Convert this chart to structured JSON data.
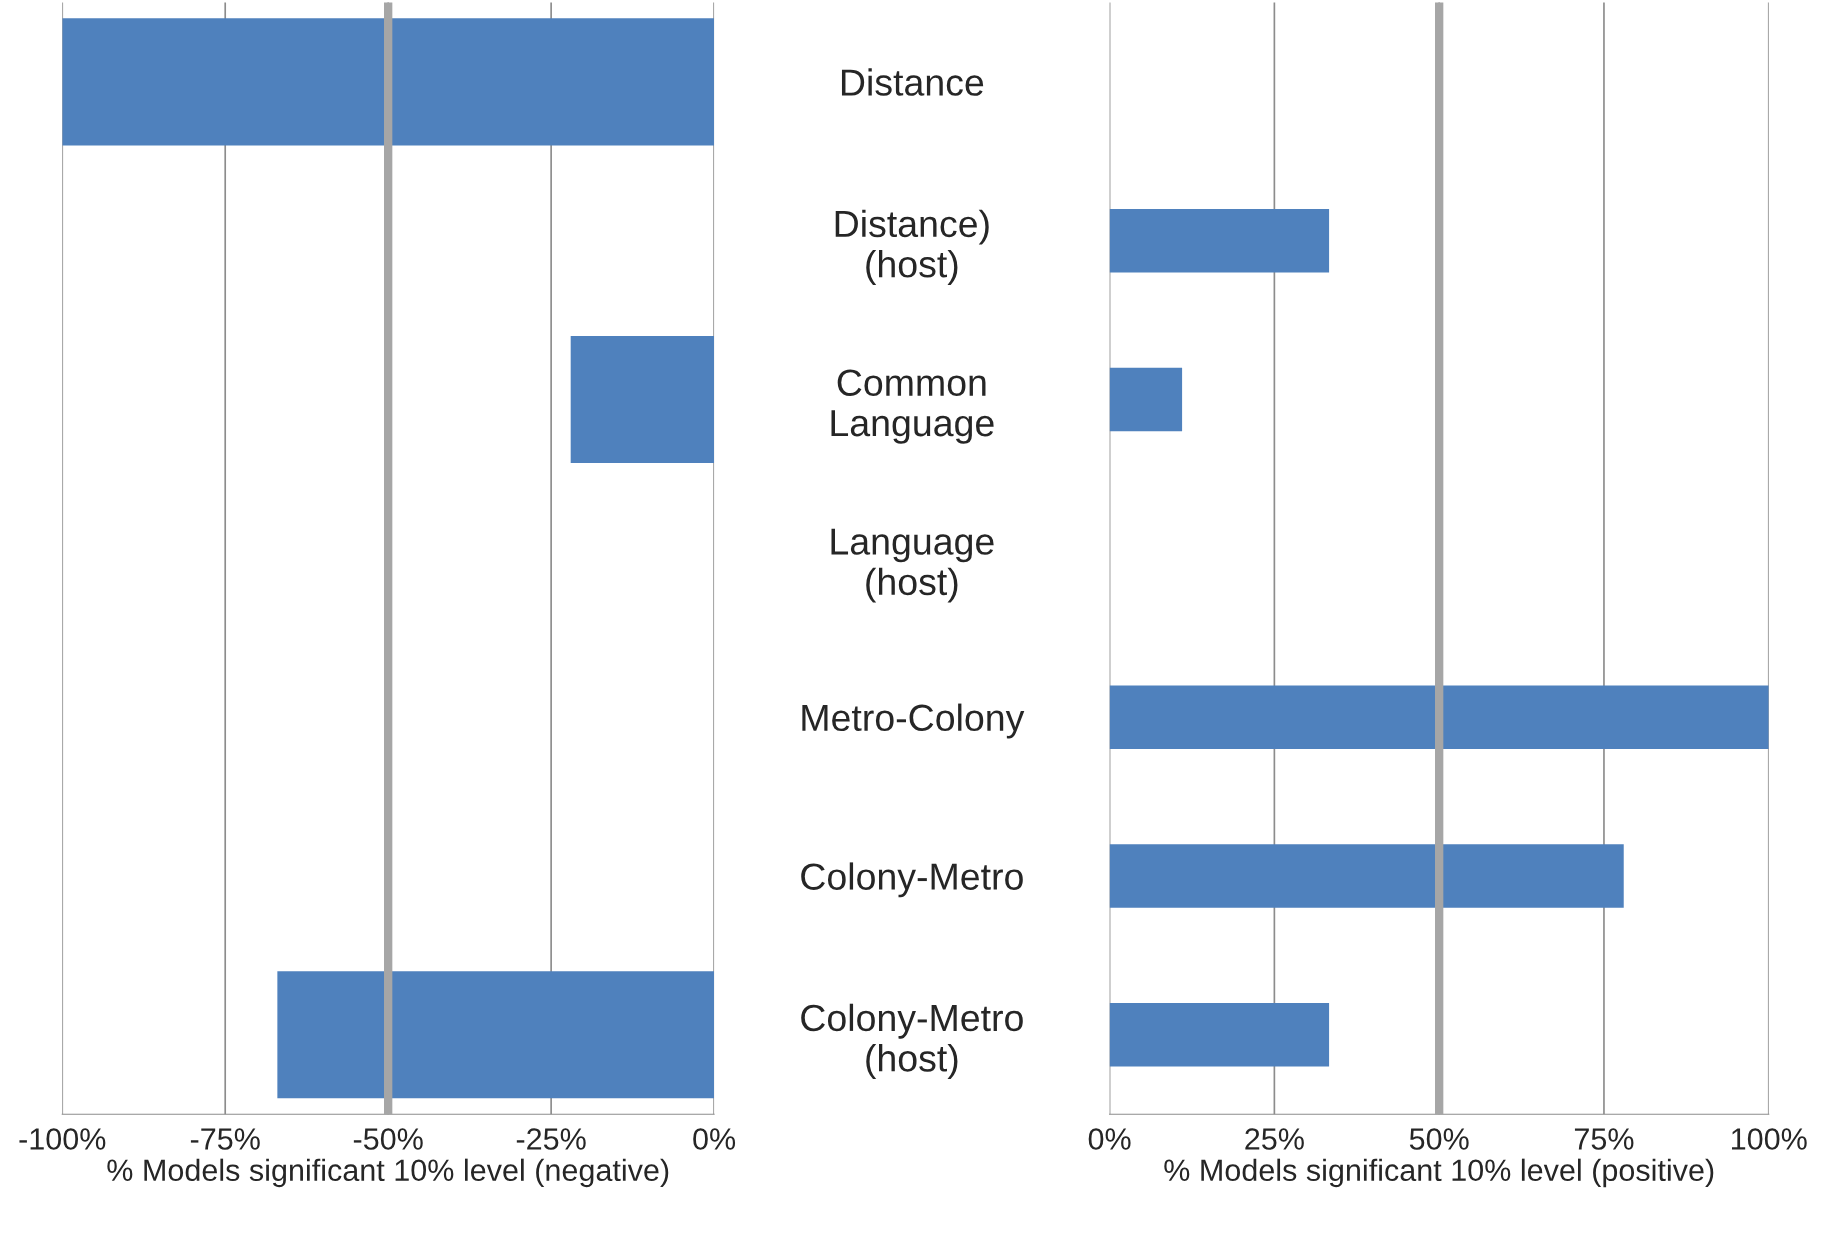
{
  "chart_data": [
    {
      "type": "bar",
      "orientation": "horizontal",
      "categories": [
        null,
        null,
        null,
        null,
        null,
        null,
        null
      ],
      "series": [
        {
          "color": "#4f81bd",
          "values": [
            -100,
            null,
            -22,
            null,
            null,
            null,
            -67
          ]
        }
      ],
      "xlabel": "% Models significant 10% level (negative)",
      "xlim": [
        -100,
        0
      ],
      "xticks": [
        {
          "value": -100,
          "label": "-100%"
        },
        {
          "value": -75,
          "label": "-75%"
        },
        {
          "value": -50,
          "label": "-50%"
        },
        {
          "value": -25,
          "label": "-25%"
        },
        {
          "value": 0,
          "label": "0%"
        }
      ],
      "ref_lines": [
        {
          "axis": "x",
          "value": -50,
          "color": "#a6a6a6"
        }
      ],
      "grid": "x"
    },
    {
      "type": "bar",
      "orientation": "horizontal",
      "categories": [
        "Distance",
        "Distance)\n(host)",
        "Common\nLanguage",
        "Language\n(host)",
        "Metro-Colony",
        "Colony-Metro",
        "Colony-Metro\n(host)"
      ],
      "series": [
        {
          "color": "#4f81bd",
          "values": [
            null,
            33.3,
            11,
            null,
            100,
            78,
            33.3
          ]
        }
      ],
      "xlabel": "% Models significant 10% level (positive)",
      "xlim": [
        0,
        100
      ],
      "xticks": [
        {
          "value": 0,
          "label": "0%"
        },
        {
          "value": 25,
          "label": "25%"
        },
        {
          "value": 50,
          "label": "50%"
        },
        {
          "value": 75,
          "label": "75%"
        },
        {
          "value": 100,
          "label": "100%"
        }
      ],
      "ref_lines": [
        {
          "axis": "x",
          "value": 50,
          "color": "#a6a6a6"
        }
      ],
      "grid": "x"
    }
  ]
}
